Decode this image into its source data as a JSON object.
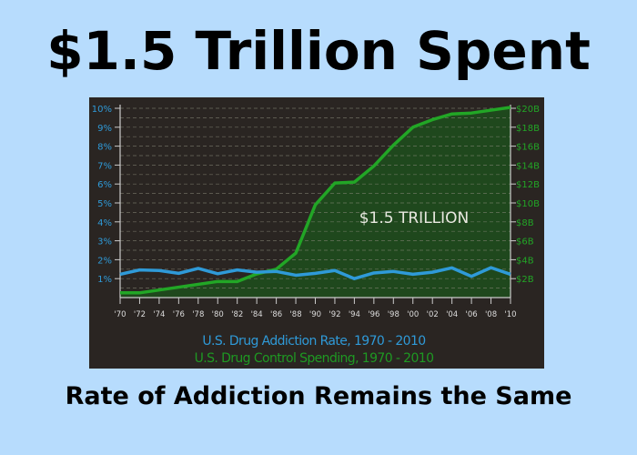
{
  "title": "$1.5 Trillion Spent",
  "subtitle": "Rate of Addiction Remains the Same",
  "chart_data": {
    "type": "line",
    "annotation": "$1.5 TRILLION",
    "x": [
      1970,
      1972,
      1974,
      1976,
      1978,
      1980,
      1982,
      1984,
      1986,
      1988,
      1990,
      1992,
      1994,
      1996,
      1998,
      2000,
      2002,
      2004,
      2006,
      2008,
      2010
    ],
    "x_tick_labels": [
      "'70",
      "'72",
      "'74",
      "'76",
      "'78",
      "'80",
      "'82",
      "'84",
      "'86",
      "'88",
      "'90",
      "'92",
      "'94",
      "'96",
      "'98",
      "'00",
      "'02",
      "'04",
      "'06",
      "'08",
      "'10"
    ],
    "y_left": {
      "ylim": [
        0,
        10
      ],
      "ticks": [
        "1%",
        "2%",
        "3%",
        "4%",
        "5%",
        "6%",
        "7%",
        "8%",
        "9%",
        "10%"
      ]
    },
    "y_right": {
      "ylim": [
        0,
        20
      ],
      "ticks": [
        "$2B",
        "$4B",
        "$6B",
        "$8B",
        "$10B",
        "$12B",
        "$14B",
        "$16B",
        "$18B",
        "$20B"
      ]
    },
    "grid": true,
    "legend_placement": "bottom",
    "series": [
      {
        "name": "U.S. Drug Addiction Rate, 1970 - 2010",
        "axis": "left",
        "unit": "%",
        "color": "#2f9ad8",
        "values": [
          1.23,
          1.46,
          1.43,
          1.28,
          1.54,
          1.26,
          1.46,
          1.34,
          1.38,
          1.18,
          1.28,
          1.43,
          1.0,
          1.3,
          1.38,
          1.23,
          1.34,
          1.57,
          1.12,
          1.58,
          1.23
        ]
      },
      {
        "name": "U.S. Drug Control Spending, 1970 - 2010",
        "axis": "right",
        "unit": "$B",
        "color": "#22a626",
        "fill": "#1e4a1c",
        "values": [
          0.5,
          0.5,
          0.8,
          1.1,
          1.4,
          1.7,
          1.7,
          2.5,
          3.0,
          4.7,
          9.8,
          12.1,
          12.2,
          13.9,
          16.1,
          18.0,
          18.8,
          19.4,
          19.5,
          19.8,
          20.1
        ]
      }
    ]
  }
}
